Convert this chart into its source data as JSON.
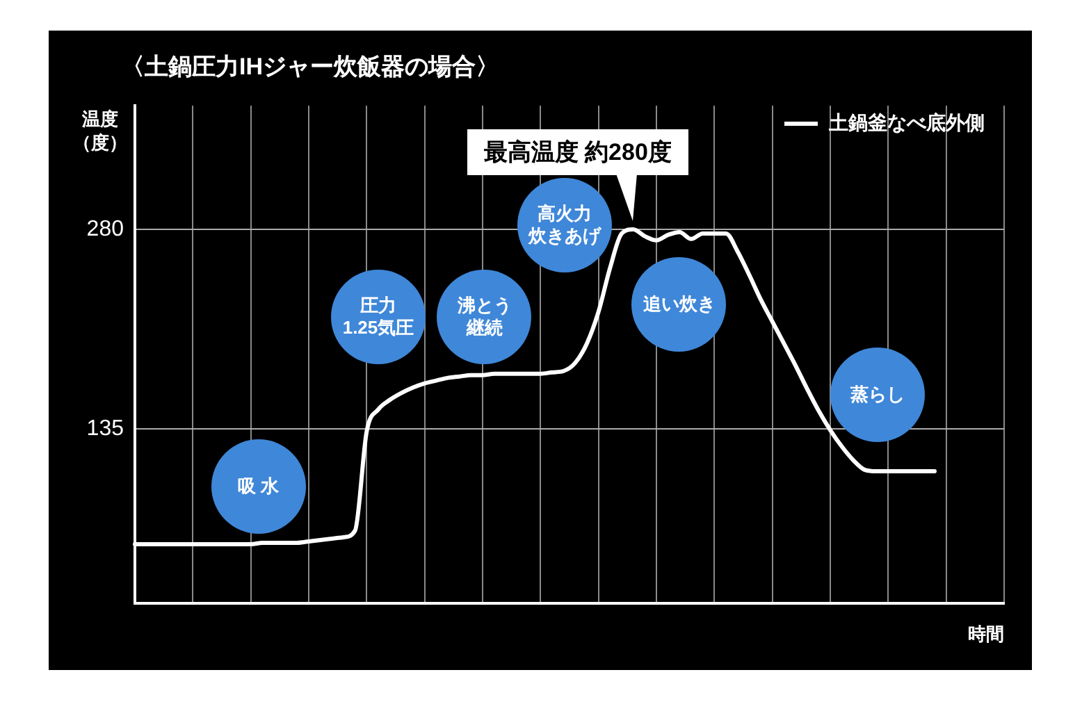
{
  "chart_data": {
    "type": "line",
    "title": "〈土鍋圧力IHジャー炊飯器の場合〉",
    "ylabel": "温度（度）",
    "xlabel": "時間",
    "categories": [
      null,
      null,
      null,
      null,
      null,
      null,
      null,
      null,
      null,
      null,
      null,
      null,
      null,
      null,
      null,
      null,
      null,
      null,
      null,
      null,
      null,
      null,
      null,
      null,
      null,
      null,
      null,
      null,
      null,
      null,
      null,
      null,
      null,
      null,
      null,
      null,
      null,
      null,
      null,
      null,
      null,
      null,
      null,
      null,
      null,
      null,
      null,
      null,
      null,
      null,
      null,
      null,
      null,
      null,
      null,
      null,
      null,
      null,
      null,
      null,
      null,
      null,
      null,
      null,
      null,
      null,
      null,
      null,
      null,
      null,
      null,
      null,
      null,
      null,
      null,
      null
    ],
    "ylim": [
      8,
      370
    ],
    "yticks": [
      135,
      280
    ],
    "grid": true,
    "legend": "top right",
    "marker": "none",
    "line_style": "solid",
    "series": [
      {
        "name": "土鍋釜なべ底外側",
        "color": "#ffffff",
        "values": [
          51,
          51,
          51,
          51,
          51,
          51,
          51,
          51,
          51,
          51,
          51,
          52,
          52,
          52,
          52,
          53,
          54,
          55,
          56,
          61,
          133,
          149,
          156,
          161,
          165,
          168,
          170,
          172,
          173,
          174,
          174,
          175,
          175,
          175,
          175,
          175,
          176,
          177,
          183,
          197,
          220,
          252,
          277,
          280,
          275,
          272,
          276,
          278,
          273,
          277,
          277,
          277,
          264,
          247,
          229,
          213,
          197,
          181,
          164,
          148,
          134,
          122,
          112,
          105,
          104,
          104,
          104,
          104,
          104,
          104,
          null,
          null,
          null,
          null,
          null,
          null
        ]
      }
    ],
    "annotations": [
      "最高温度 約280度",
      "吸 水",
      "圧力1.25気圧",
      "沸とう継続",
      "高火力炊きあげ",
      "追い炊き",
      "蒸らし"
    ]
  }
}
